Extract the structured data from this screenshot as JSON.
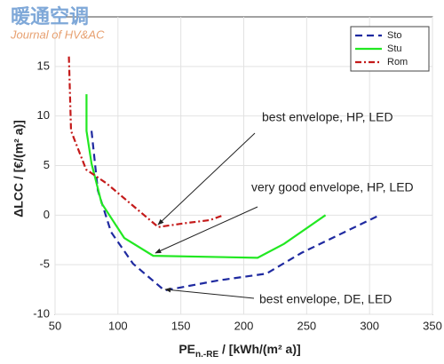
{
  "chart_data": {
    "type": "line",
    "watermark": "暖通空调",
    "watermark_sub": "Journal of HV&AC",
    "xlabel": {
      "main": "PE",
      "sub": "n.-RE",
      "rest": " / [kWh/(m² a)]"
    },
    "ylabel": "ΔLCC / [€/(m² a)]",
    "xlim": [
      50,
      350
    ],
    "xticks": [
      50,
      100,
      150,
      200,
      250,
      300,
      350
    ],
    "ylim": [
      -10,
      20
    ],
    "yticks": [
      -10,
      -5,
      0,
      5,
      10,
      15
    ],
    "grid": true,
    "legend": "upper right",
    "series": [
      {
        "name": "Sto",
        "color": "#1f2aa0",
        "dash": "8,5",
        "x": [
          79,
          84,
          94.5,
          112,
          137,
          179,
          218,
          246,
          308
        ],
        "values": [
          8.5,
          2.5,
          -1.7,
          -4.9,
          -7.6,
          -6.6,
          -5.9,
          -3.8,
          0
        ]
      },
      {
        "name": "Stu",
        "color": "#22e822",
        "dash": "",
        "x": [
          75,
          75,
          79,
          87,
          105,
          128,
          211,
          232,
          265
        ],
        "values": [
          12.2,
          8.5,
          5.2,
          1.2,
          -2.3,
          -4.1,
          -4.3,
          -2.9,
          0
        ]
      },
      {
        "name": "Rom",
        "color": "#c41a1a",
        "dash": "7,3,2,3",
        "x": [
          61,
          62.7,
          74.7,
          91,
          132,
          154,
          173,
          184
        ],
        "values": [
          16,
          8.5,
          4.6,
          3.2,
          -1.2,
          -0.8,
          -0.5,
          0
        ]
      }
    ],
    "annotations": [
      "best envelope, HP, LED",
      "very good envelope, HP, LED",
      "best envelope, DE, LED"
    ]
  }
}
